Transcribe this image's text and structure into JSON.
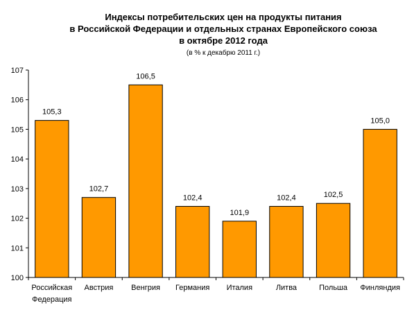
{
  "chart_data": {
    "type": "bar",
    "title": [
      "Индексы потребительских цен на продукты питания",
      "в Российской Федерации и отдельных странах Европейского союза",
      "в октябре 2012 года"
    ],
    "subtitle": "(в % к декабрю 2011 г.)",
    "categories": [
      [
        "Российская",
        "Федерация"
      ],
      [
        "Австрия"
      ],
      [
        "Венгрия"
      ],
      [
        "Германия"
      ],
      [
        "Италия"
      ],
      [
        "Литва"
      ],
      [
        "Польша"
      ],
      [
        "Финляндия"
      ]
    ],
    "values": [
      105.3,
      102.7,
      106.5,
      102.4,
      101.9,
      102.4,
      102.5,
      105.0
    ],
    "data_labels": [
      "105,3",
      "102,7",
      "106,5",
      "102,4",
      "101,9",
      "102,4",
      "102,5",
      "105,0"
    ],
    "ylim": [
      100,
      107
    ],
    "yticks": [
      100,
      101,
      102,
      103,
      104,
      105,
      106,
      107
    ],
    "xlabel": "",
    "ylabel": "",
    "grid": false,
    "legend": "none",
    "bar_color": "#FF9900",
    "bar_stroke": "#000000"
  }
}
